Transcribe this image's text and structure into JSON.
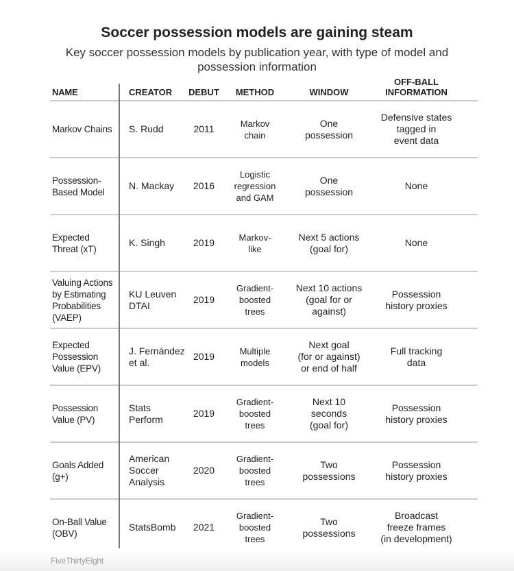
{
  "header": {
    "title": "Soccer possession models are gaining steam",
    "subtitle": "Key soccer possession models by publication year, with type of model and possession information"
  },
  "chart_data": {
    "type": "table",
    "title": "Soccer possession models are gaining steam",
    "subtitle": "Key soccer possession models by publication year, with type of model and possession information",
    "columns": [
      "NAME",
      "CREATOR",
      "DEBUT",
      "METHOD",
      "WINDOW",
      "OFF-BALL\nINFORMATION"
    ],
    "rows": [
      [
        "Markov Chains",
        "S. Rudd",
        "2011",
        "Markov\nchain",
        "One\npossession",
        "Defensive states\ntagged in\nevent data"
      ],
      [
        "Possession-\nBased Model",
        "N. Mackay",
        "2016",
        "Logistic\nregression\nand GAM",
        "One\npossession",
        "None"
      ],
      [
        "Expected\nThreat (xT)",
        "K. Singh",
        "2019",
        "Markov-\nlike",
        "Next 5 actions\n(goal for)",
        "None"
      ],
      [
        "Valuing Actions\nby Estimating\nProbabilities\n(VAEP)",
        "KU Leuven\nDTAI",
        "2019",
        "Gradient-\nboosted\ntrees",
        "Next 10 actions\n(goal for or\nagainst)",
        "Possession\nhistory proxies"
      ],
      [
        "Expected\nPossession\nValue (EPV)",
        "J. Fernández\net al.",
        "2019",
        "Multiple\nmodels",
        "Next goal\n(for or against)\nor end of half",
        "Full tracking\ndata"
      ],
      [
        "Possession\nValue (PV)",
        "Stats\nPerform",
        "2019",
        "Gradient-\nboosted\ntrees",
        "Next 10\nseconds\n(goal for)",
        "Possession\nhistory proxies"
      ],
      [
        "Goals Added\n(g+)",
        "American\nSoccer\nAnalysis",
        "2020",
        "Gradient-\nboosted\ntrees",
        "Two\npossessions",
        "Possession\nhistory proxies"
      ],
      [
        "On-Ball Value\n(OBV)",
        "StatsBomb",
        "2021",
        "Gradient-\nboosted\ntrees",
        "Two\npossessions",
        "Broadcast\nfreeze frames\n(in development)"
      ]
    ]
  },
  "footer": {
    "source": "FiveThirtyEight"
  }
}
